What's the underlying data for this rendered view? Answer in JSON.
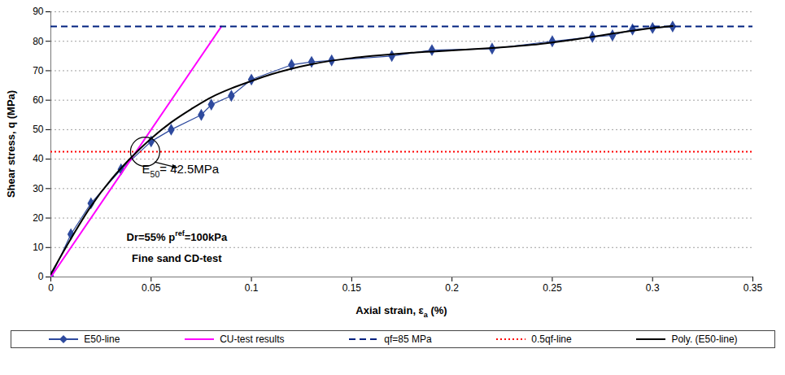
{
  "chart_data": {
    "type": "line",
    "y_label": "Shear stress, q (MPa)",
    "x_label": [
      {
        "text": "Axial strain, ε"
      },
      {
        "text": "a",
        "sub": true
      },
      {
        "text": " (%)"
      }
    ],
    "xlim": [
      0,
      0.35
    ],
    "xticks": [
      0,
      0.05,
      0.1,
      0.15,
      0.2,
      0.25,
      0.3,
      0.35
    ],
    "ylim": [
      0,
      90
    ],
    "yticks": [
      0,
      10,
      20,
      30,
      40,
      50,
      60,
      70,
      80,
      90
    ],
    "grid": true,
    "legend": "bottom",
    "series": [
      {
        "name": "E50-line",
        "type": "line",
        "color": "#2e4a9e",
        "marker": "diamond",
        "line_style": "solid",
        "x": [
          0,
          0.01,
          0.02,
          0.035,
          0.05,
          0.06,
          0.075,
          0.08,
          0.09,
          0.1,
          0.12,
          0.13,
          0.14,
          0.17,
          0.19,
          0.22,
          0.25,
          0.27,
          0.28,
          0.29,
          0.3,
          0.31
        ],
        "values": [
          0,
          14.5,
          25,
          36.5,
          46,
          50,
          55,
          58.5,
          61.5,
          67,
          72,
          73,
          73.5,
          75,
          77,
          77.5,
          80,
          81.5,
          82,
          84,
          84.5,
          85
        ]
      },
      {
        "name": "CU-test results",
        "type": "line",
        "color": "#ff00ff",
        "line_style": "solid",
        "x": [
          0,
          0.085
        ],
        "values": [
          0,
          85
        ]
      },
      {
        "name": "qf=85 MPa",
        "type": "hline",
        "color": "#00207f",
        "line_style": "dashed",
        "values": [
          85
        ]
      },
      {
        "name": "0.5qf-line",
        "type": "hline",
        "color": "#ff0000",
        "line_style": "dotted",
        "values": [
          42.5
        ]
      },
      {
        "name": "Poly. (E50-line)",
        "type": "line",
        "color": "#000000",
        "line_style": "solid",
        "x": [
          0,
          0.01,
          0.02,
          0.03,
          0.04,
          0.05,
          0.06,
          0.07,
          0.08,
          0.09,
          0.1,
          0.11,
          0.12,
          0.13,
          0.14,
          0.15,
          0.16,
          0.17,
          0.18,
          0.19,
          0.2,
          0.21,
          0.22,
          0.23,
          0.24,
          0.25,
          0.26,
          0.27,
          0.28,
          0.29,
          0.3,
          0.31
        ],
        "values": [
          1,
          13,
          24,
          33,
          40.5,
          47,
          52.5,
          57,
          61,
          64,
          66.5,
          68.8,
          70.7,
          72.2,
          73.4,
          74.3,
          75,
          75.6,
          76.1,
          76.5,
          76.9,
          77.3,
          77.7,
          78.2,
          78.8,
          79.6,
          80.5,
          81.5,
          82.6,
          83.6,
          84.5,
          85.2
        ]
      }
    ],
    "annotations": [
      {
        "segments": [
          {
            "text": "E"
          },
          {
            "text": "50",
            "sub": true
          },
          {
            "text": "= 42.5MPa"
          }
        ],
        "x": 0.047,
        "y": 42.5
      },
      {
        "lines": [
          [
            {
              "text": "Dr=55% p"
            },
            {
              "text": "ref",
              "sup": true
            },
            {
              "text": "=100kPa"
            }
          ],
          [
            {
              "text": "Fine sand CD-test"
            }
          ]
        ]
      }
    ]
  }
}
